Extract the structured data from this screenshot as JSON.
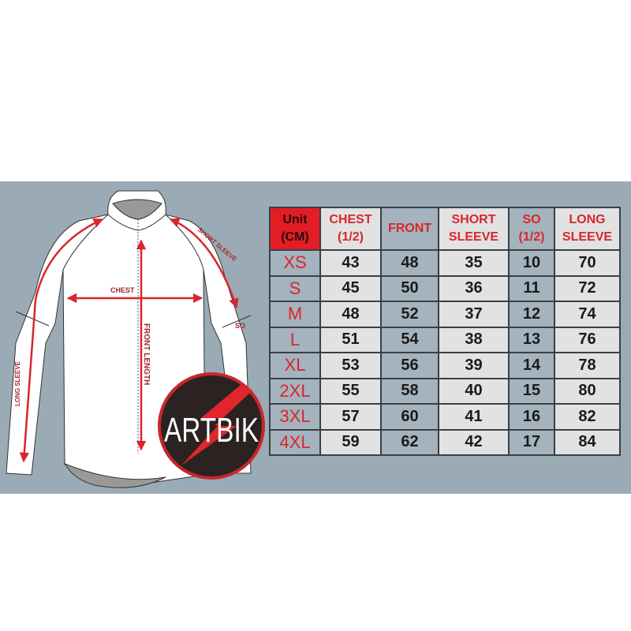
{
  "diagram_labels": {
    "chest": "CHEST",
    "front_length": "FRONT LENGTH",
    "short_sleeve": "SHORT SLEEVE",
    "so": "SO",
    "long_sleeve": "LONG SLEEVE"
  },
  "logo": {
    "text": "ARTBIK"
  },
  "colors": {
    "accent": "#d9262c",
    "background": "#9aabb6",
    "unit_header": "#e21d24"
  },
  "table": {
    "headers": [
      {
        "line1": "Unit",
        "line2": "(CM)"
      },
      {
        "line1": "CHEST",
        "line2": "(1/2)"
      },
      {
        "line1": "FRONT",
        "line2": ""
      },
      {
        "line1": "SHORT",
        "line2": "SLEEVE"
      },
      {
        "line1": "SO",
        "line2": "(1/2)"
      },
      {
        "line1": "LONG",
        "line2": "SLEEVE"
      }
    ],
    "rows": [
      [
        "XS",
        "43",
        "48",
        "35",
        "10",
        "70"
      ],
      [
        "S",
        "45",
        "50",
        "36",
        "11",
        "72"
      ],
      [
        "M",
        "48",
        "52",
        "37",
        "12",
        "74"
      ],
      [
        "L",
        "51",
        "54",
        "38",
        "13",
        "76"
      ],
      [
        "XL",
        "53",
        "56",
        "39",
        "14",
        "78"
      ],
      [
        "2XL",
        "55",
        "58",
        "40",
        "15",
        "80"
      ],
      [
        "3XL",
        "57",
        "60",
        "41",
        "16",
        "82"
      ],
      [
        "4XL",
        "59",
        "62",
        "42",
        "17",
        "84"
      ]
    ]
  }
}
